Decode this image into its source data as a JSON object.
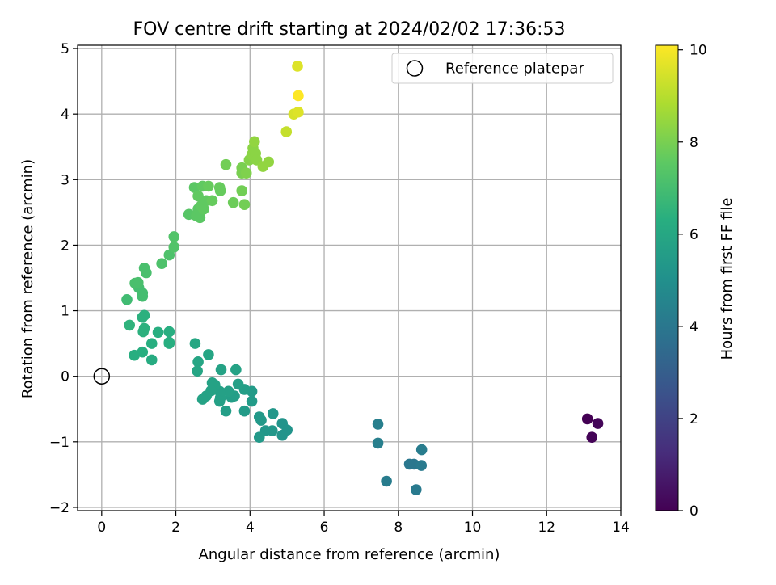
{
  "chart_data": {
    "type": "scatter",
    "title": "FOV centre drift starting at 2024/02/02 17:36:53",
    "xlabel": "Angular distance from reference (arcmin)",
    "ylabel": "Rotation from reference (arcmin)",
    "xlim": [
      -0.65,
      14.0
    ],
    "ylim": [
      -2.05,
      5.05
    ],
    "xticks": [
      0,
      2,
      4,
      6,
      8,
      10,
      12,
      14
    ],
    "yticks": [
      -2,
      -1,
      0,
      1,
      2,
      3,
      4,
      5
    ],
    "grid": true,
    "legend": {
      "placement": "top-right",
      "entries": [
        "Reference platepar"
      ]
    },
    "reference_point": {
      "x": 0,
      "y": 0,
      "name": "Reference platepar"
    },
    "colorbar": {
      "label": "Hours from first FF file",
      "range": [
        0,
        10.1
      ],
      "ticks": [
        0,
        2,
        4,
        6,
        8,
        10
      ],
      "colormap": "viridis"
    },
    "points": [
      {
        "x": 13.1,
        "y": -0.65,
        "c": 0.0
      },
      {
        "x": 13.38,
        "y": -0.72,
        "c": 0.15
      },
      {
        "x": 13.22,
        "y": -0.93,
        "c": 0.1
      },
      {
        "x": 7.45,
        "y": -0.73,
        "c": 4.3
      },
      {
        "x": 7.45,
        "y": -1.02,
        "c": 4.3
      },
      {
        "x": 7.68,
        "y": -1.6,
        "c": 4.2
      },
      {
        "x": 8.3,
        "y": -1.34,
        "c": 4.0
      },
      {
        "x": 8.42,
        "y": -1.34,
        "c": 4.0
      },
      {
        "x": 8.48,
        "y": -1.73,
        "c": 4.1
      },
      {
        "x": 8.63,
        "y": -1.12,
        "c": 4.2
      },
      {
        "x": 8.62,
        "y": -1.36,
        "c": 4.1
      },
      {
        "x": 4.87,
        "y": -0.72,
        "c": 5.2
      },
      {
        "x": 5.0,
        "y": -0.82,
        "c": 5.2
      },
      {
        "x": 4.87,
        "y": -0.9,
        "c": 5.2
      },
      {
        "x": 4.62,
        "y": -0.57,
        "c": 5.3
      },
      {
        "x": 4.6,
        "y": -0.83,
        "c": 5.3
      },
      {
        "x": 4.42,
        "y": -0.83,
        "c": 5.3
      },
      {
        "x": 4.25,
        "y": -0.62,
        "c": 5.4
      },
      {
        "x": 4.3,
        "y": -0.67,
        "c": 5.4
      },
      {
        "x": 4.25,
        "y": -0.93,
        "c": 5.4
      },
      {
        "x": 4.05,
        "y": -0.23,
        "c": 5.5
      },
      {
        "x": 4.05,
        "y": -0.38,
        "c": 5.5
      },
      {
        "x": 3.85,
        "y": -0.2,
        "c": 5.6
      },
      {
        "x": 3.85,
        "y": -0.53,
        "c": 5.5
      },
      {
        "x": 3.68,
        "y": -0.12,
        "c": 5.7
      },
      {
        "x": 3.62,
        "y": 0.1,
        "c": 5.8
      },
      {
        "x": 3.58,
        "y": -0.3,
        "c": 5.6
      },
      {
        "x": 3.5,
        "y": -0.32,
        "c": 5.6
      },
      {
        "x": 3.42,
        "y": -0.23,
        "c": 5.7
      },
      {
        "x": 3.35,
        "y": -0.53,
        "c": 5.6
      },
      {
        "x": 3.22,
        "y": 0.1,
        "c": 5.8
      },
      {
        "x": 3.2,
        "y": -0.33,
        "c": 5.7
      },
      {
        "x": 3.18,
        "y": -0.23,
        "c": 5.7
      },
      {
        "x": 3.18,
        "y": -0.38,
        "c": 5.7
      },
      {
        "x": 3.05,
        "y": -0.13,
        "c": 5.8
      },
      {
        "x": 2.98,
        "y": -0.1,
        "c": 5.8
      },
      {
        "x": 2.95,
        "y": -0.22,
        "c": 5.8
      },
      {
        "x": 2.88,
        "y": 0.33,
        "c": 5.9
      },
      {
        "x": 2.82,
        "y": -0.3,
        "c": 5.8
      },
      {
        "x": 2.72,
        "y": -0.35,
        "c": 5.8
      },
      {
        "x": 2.6,
        "y": 0.22,
        "c": 5.9
      },
      {
        "x": 2.58,
        "y": 0.08,
        "c": 5.9
      },
      {
        "x": 2.52,
        "y": 0.5,
        "c": 6.0
      },
      {
        "x": 1.82,
        "y": 0.68,
        "c": 6.3
      },
      {
        "x": 1.82,
        "y": 0.52,
        "c": 6.3
      },
      {
        "x": 1.82,
        "y": 0.5,
        "c": 6.3
      },
      {
        "x": 1.52,
        "y": 0.67,
        "c": 6.3
      },
      {
        "x": 1.35,
        "y": 0.5,
        "c": 6.3
      },
      {
        "x": 1.35,
        "y": 0.25,
        "c": 6.2
      },
      {
        "x": 1.15,
        "y": 0.93,
        "c": 6.4
      },
      {
        "x": 1.15,
        "y": 0.73,
        "c": 6.4
      },
      {
        "x": 1.12,
        "y": 0.68,
        "c": 6.4
      },
      {
        "x": 1.1,
        "y": 0.37,
        "c": 6.3
      },
      {
        "x": 1.1,
        "y": 0.9,
        "c": 6.4
      },
      {
        "x": 0.88,
        "y": 0.32,
        "c": 6.3
      },
      {
        "x": 0.75,
        "y": 0.78,
        "c": 6.5
      },
      {
        "x": 0.68,
        "y": 1.17,
        "c": 6.9
      },
      {
        "x": 1.1,
        "y": 1.22,
        "c": 7.0
      },
      {
        "x": 1.1,
        "y": 1.27,
        "c": 7.0
      },
      {
        "x": 1.0,
        "y": 1.35,
        "c": 7.0
      },
      {
        "x": 0.98,
        "y": 1.43,
        "c": 7.1
      },
      {
        "x": 0.9,
        "y": 1.42,
        "c": 7.1
      },
      {
        "x": 1.2,
        "y": 1.58,
        "c": 7.1
      },
      {
        "x": 1.15,
        "y": 1.65,
        "c": 7.1
      },
      {
        "x": 1.62,
        "y": 1.72,
        "c": 7.2
      },
      {
        "x": 1.82,
        "y": 1.85,
        "c": 7.2
      },
      {
        "x": 1.95,
        "y": 1.97,
        "c": 7.3
      },
      {
        "x": 1.95,
        "y": 2.13,
        "c": 7.3
      },
      {
        "x": 2.35,
        "y": 2.47,
        "c": 7.4
      },
      {
        "x": 2.5,
        "y": 2.88,
        "c": 7.5
      },
      {
        "x": 2.55,
        "y": 2.45,
        "c": 7.5
      },
      {
        "x": 2.6,
        "y": 2.55,
        "c": 7.5
      },
      {
        "x": 2.6,
        "y": 2.75,
        "c": 7.6
      },
      {
        "x": 2.65,
        "y": 2.42,
        "c": 7.5
      },
      {
        "x": 2.68,
        "y": 2.6,
        "c": 7.6
      },
      {
        "x": 2.72,
        "y": 2.9,
        "c": 7.6
      },
      {
        "x": 2.75,
        "y": 2.55,
        "c": 7.6
      },
      {
        "x": 2.82,
        "y": 2.68,
        "c": 7.6
      },
      {
        "x": 2.88,
        "y": 2.9,
        "c": 7.7
      },
      {
        "x": 2.98,
        "y": 2.68,
        "c": 7.7
      },
      {
        "x": 3.18,
        "y": 2.88,
        "c": 7.7
      },
      {
        "x": 3.2,
        "y": 2.83,
        "c": 7.7
      },
      {
        "x": 3.35,
        "y": 3.23,
        "c": 7.9
      },
      {
        "x": 3.55,
        "y": 2.65,
        "c": 7.8
      },
      {
        "x": 3.78,
        "y": 2.83,
        "c": 7.9
      },
      {
        "x": 3.85,
        "y": 2.62,
        "c": 7.9
      },
      {
        "x": 3.78,
        "y": 3.18,
        "c": 8.0
      },
      {
        "x": 3.78,
        "y": 3.1,
        "c": 8.0
      },
      {
        "x": 3.9,
        "y": 3.1,
        "c": 8.1
      },
      {
        "x": 3.98,
        "y": 3.3,
        "c": 8.2
      },
      {
        "x": 4.05,
        "y": 3.38,
        "c": 8.3
      },
      {
        "x": 4.08,
        "y": 3.48,
        "c": 8.3
      },
      {
        "x": 4.12,
        "y": 3.58,
        "c": 8.4
      },
      {
        "x": 4.15,
        "y": 3.4,
        "c": 8.3
      },
      {
        "x": 4.18,
        "y": 3.3,
        "c": 8.3
      },
      {
        "x": 4.35,
        "y": 3.2,
        "c": 8.4
      },
      {
        "x": 4.5,
        "y": 3.27,
        "c": 8.4
      },
      {
        "x": 4.98,
        "y": 3.73,
        "c": 9.2
      },
      {
        "x": 5.18,
        "y": 4.0,
        "c": 9.5
      },
      {
        "x": 5.3,
        "y": 4.03,
        "c": 9.6
      },
      {
        "x": 5.28,
        "y": 4.73,
        "c": 9.6
      },
      {
        "x": 5.3,
        "y": 4.28,
        "c": 10.1
      }
    ]
  }
}
